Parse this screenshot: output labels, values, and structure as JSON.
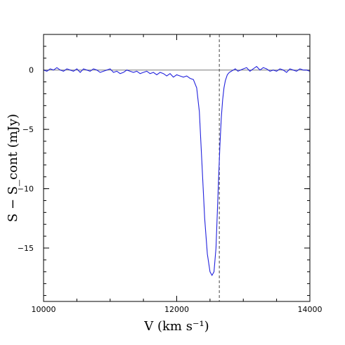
{
  "chart_data": {
    "type": "line",
    "xlabel": "V (km s⁻¹)",
    "ylabel": "S − S_cont (mJy)",
    "xlim": [
      10000,
      14000
    ],
    "ylim": [
      -19.5,
      3
    ],
    "xticks": [
      10000,
      12000,
      14000
    ],
    "yticks": [
      0,
      -5,
      -10,
      -15
    ],
    "x_minor_step": 500,
    "y_minor_step": 1,
    "grid": false,
    "colors": {
      "series": "#2222dd",
      "zero_line": "#888888",
      "marker_line": "#444444"
    },
    "reference_lines": [
      {
        "orientation": "horizontal",
        "value": 0,
        "style": "solid"
      },
      {
        "orientation": "vertical",
        "value": 12640,
        "style": "dashed"
      }
    ],
    "series": [
      {
        "x": [
          10000,
          10050,
          10100,
          10150,
          10200,
          10250,
          10300,
          10350,
          10400,
          10450,
          10500,
          10550,
          10600,
          10650,
          10700,
          10750,
          10800,
          10850,
          10900,
          10950,
          11000,
          11050,
          11100,
          11150,
          11200,
          11250,
          11300,
          11350,
          11400,
          11450,
          11500,
          11550,
          11600,
          11650,
          11700,
          11750,
          11800,
          11850,
          11900,
          11950,
          12000,
          12050,
          12100,
          12150,
          12200,
          12250,
          12300,
          12340,
          12380,
          12420,
          12460,
          12500,
          12530,
          12560,
          12590,
          12610,
          12630,
          12650,
          12670,
          12690,
          12710,
          12730,
          12760,
          12790,
          12820,
          12850,
          12880,
          12920,
          12960,
          13000,
          13050,
          13100,
          13150,
          13200,
          13250,
          13300,
          13350,
          13400,
          13450,
          13500,
          13550,
          13600,
          13650,
          13700,
          13750,
          13800,
          13850,
          13900,
          13950,
          14000
        ],
        "values": [
          0.0,
          -0.1,
          0.1,
          0.0,
          0.2,
          0.0,
          -0.1,
          0.1,
          0.0,
          -0.1,
          0.1,
          -0.2,
          0.1,
          0.0,
          -0.1,
          0.1,
          0.0,
          -0.2,
          -0.1,
          0.0,
          0.1,
          -0.2,
          -0.1,
          -0.3,
          -0.2,
          0.0,
          -0.1,
          -0.2,
          -0.1,
          -0.3,
          -0.2,
          -0.1,
          -0.3,
          -0.2,
          -0.4,
          -0.2,
          -0.3,
          -0.5,
          -0.3,
          -0.6,
          -0.4,
          -0.5,
          -0.6,
          -0.5,
          -0.7,
          -0.8,
          -1.5,
          -3.5,
          -8.0,
          -12.5,
          -15.5,
          -17.0,
          -17.3,
          -17.0,
          -15.0,
          -12.0,
          -9.0,
          -6.2,
          -4.0,
          -2.5,
          -1.5,
          -0.9,
          -0.4,
          -0.2,
          -0.1,
          0.0,
          0.1,
          -0.1,
          0.0,
          0.1,
          0.2,
          -0.1,
          0.1,
          0.3,
          0.0,
          0.2,
          0.1,
          -0.1,
          0.0,
          -0.1,
          0.1,
          0.0,
          -0.2,
          0.1,
          0.0,
          -0.1,
          0.1,
          0.0,
          0.0,
          -0.1
        ]
      }
    ]
  }
}
